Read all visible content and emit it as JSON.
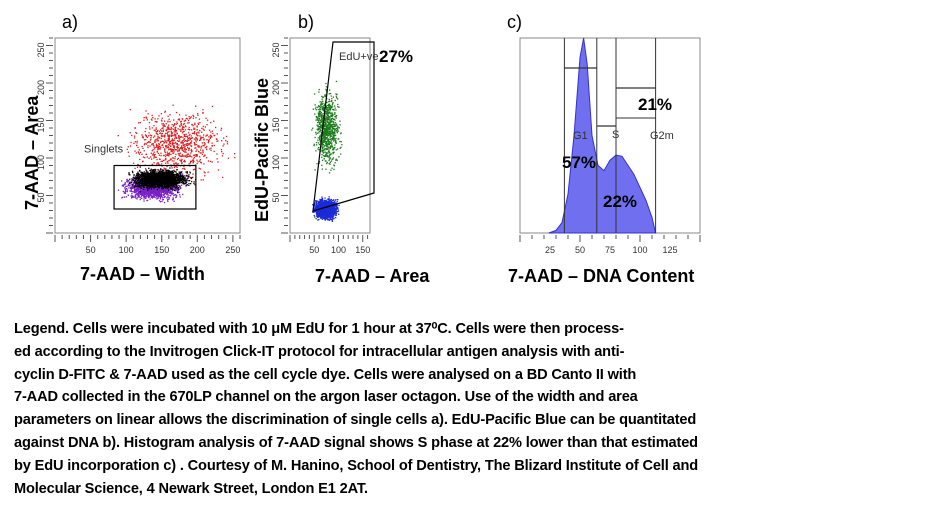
{
  "chart_data": [
    {
      "panel": "a)",
      "type": "scatter",
      "xlabel": "7-AAD – Width",
      "ylabel": "7-AAD – Area",
      "x_ticks": [
        "50",
        "100",
        "150",
        "200",
        "250"
      ],
      "y_ticks": [
        "50",
        "100",
        "150",
        "200",
        "250"
      ],
      "xlim": [
        0,
        260
      ],
      "ylim": [
        0,
        260
      ],
      "gates": [
        {
          "label": "Singlets",
          "x": [
            83,
            198
          ],
          "y": [
            32,
            90
          ]
        }
      ],
      "populations": [
        {
          "color": "#dd1f1f",
          "x_range": [
            80,
            260
          ],
          "y_range": [
            60,
            180
          ],
          "density": "sparse"
        },
        {
          "color": "#7b20c8",
          "x_range": [
            85,
            190
          ],
          "y_range": [
            40,
            85
          ],
          "density": "dense"
        },
        {
          "color": "#000000",
          "x_range": [
            95,
            200
          ],
          "y_range": [
            55,
            90
          ],
          "density": "dense"
        }
      ]
    },
    {
      "panel": "b)",
      "type": "scatter",
      "xlabel": "7-AAD – Area",
      "ylabel": "EdU-Pacific Blue",
      "x_ticks": [
        "50",
        "100",
        "150"
      ],
      "y_ticks": [
        "50",
        "100",
        "150",
        "200",
        "250"
      ],
      "xlim": [
        0,
        165
      ],
      "ylim": [
        0,
        260
      ],
      "gates": [
        {
          "label": "EdU+ve",
          "percent": "27%"
        }
      ],
      "populations": [
        {
          "color": "#1a7a1a",
          "x_range": [
            40,
            110
          ],
          "y_range": [
            70,
            210
          ],
          "density": "medium"
        },
        {
          "color": "#1a2bd6",
          "x_range": [
            40,
            105
          ],
          "y_range": [
            15,
            50
          ],
          "density": "dense"
        }
      ]
    },
    {
      "panel": "c)",
      "type": "area",
      "xlabel": "7-AAD – DNA Content",
      "x_ticks": [
        "25",
        "50",
        "75",
        "100",
        "125"
      ],
      "xlim": [
        0,
        150
      ],
      "x": [
        24,
        30,
        35,
        40,
        45,
        50,
        53,
        56,
        60,
        65,
        70,
        75,
        80,
        85,
        90,
        95,
        100,
        105,
        110,
        113
      ],
      "y": [
        0,
        2,
        8,
        30,
        75,
        135,
        150,
        130,
        75,
        52,
        48,
        56,
        60,
        59,
        52,
        45,
        35,
        25,
        12,
        0
      ],
      "fill_color": "#6f6ff0",
      "regions": [
        {
          "label": "G1",
          "percent": "57%",
          "x_range": [
            37,
            64
          ]
        },
        {
          "label": "S",
          "percent": "22%",
          "x_range": [
            64,
            80
          ]
        },
        {
          "label": "G2m",
          "percent": "21%",
          "x_range": [
            80,
            113
          ]
        }
      ]
    }
  ],
  "legend": {
    "lines": [
      "Legend. Cells were incubated with 10 μM EdU for 1 hour at 37⁰C. Cells were then process-",
      "ed according to the Invitrogen Click-IT protocol for intracellular antigen analysis with anti-",
      "cyclin D-FITC & 7-AAD used as the cell cycle dye. Cells were analysed on a BD Canto II with",
      "7-AAD collected in the 670LP channel on the argon laser octagon. Use of the width and area",
      "parameters on linear allows the discrimination of single cells a). EdU-Pacific Blue can be quantitated",
      "against DNA b). Histogram analysis of 7-AAD signal shows S phase at 22% lower than that estimated",
      "by EdU incorporation c) . Courtesy of M. Hanino, School of Dentistry, The Blizard Institute of Cell and",
      "Molecular Science, 4 Newark Street, London E1 2AT."
    ]
  }
}
